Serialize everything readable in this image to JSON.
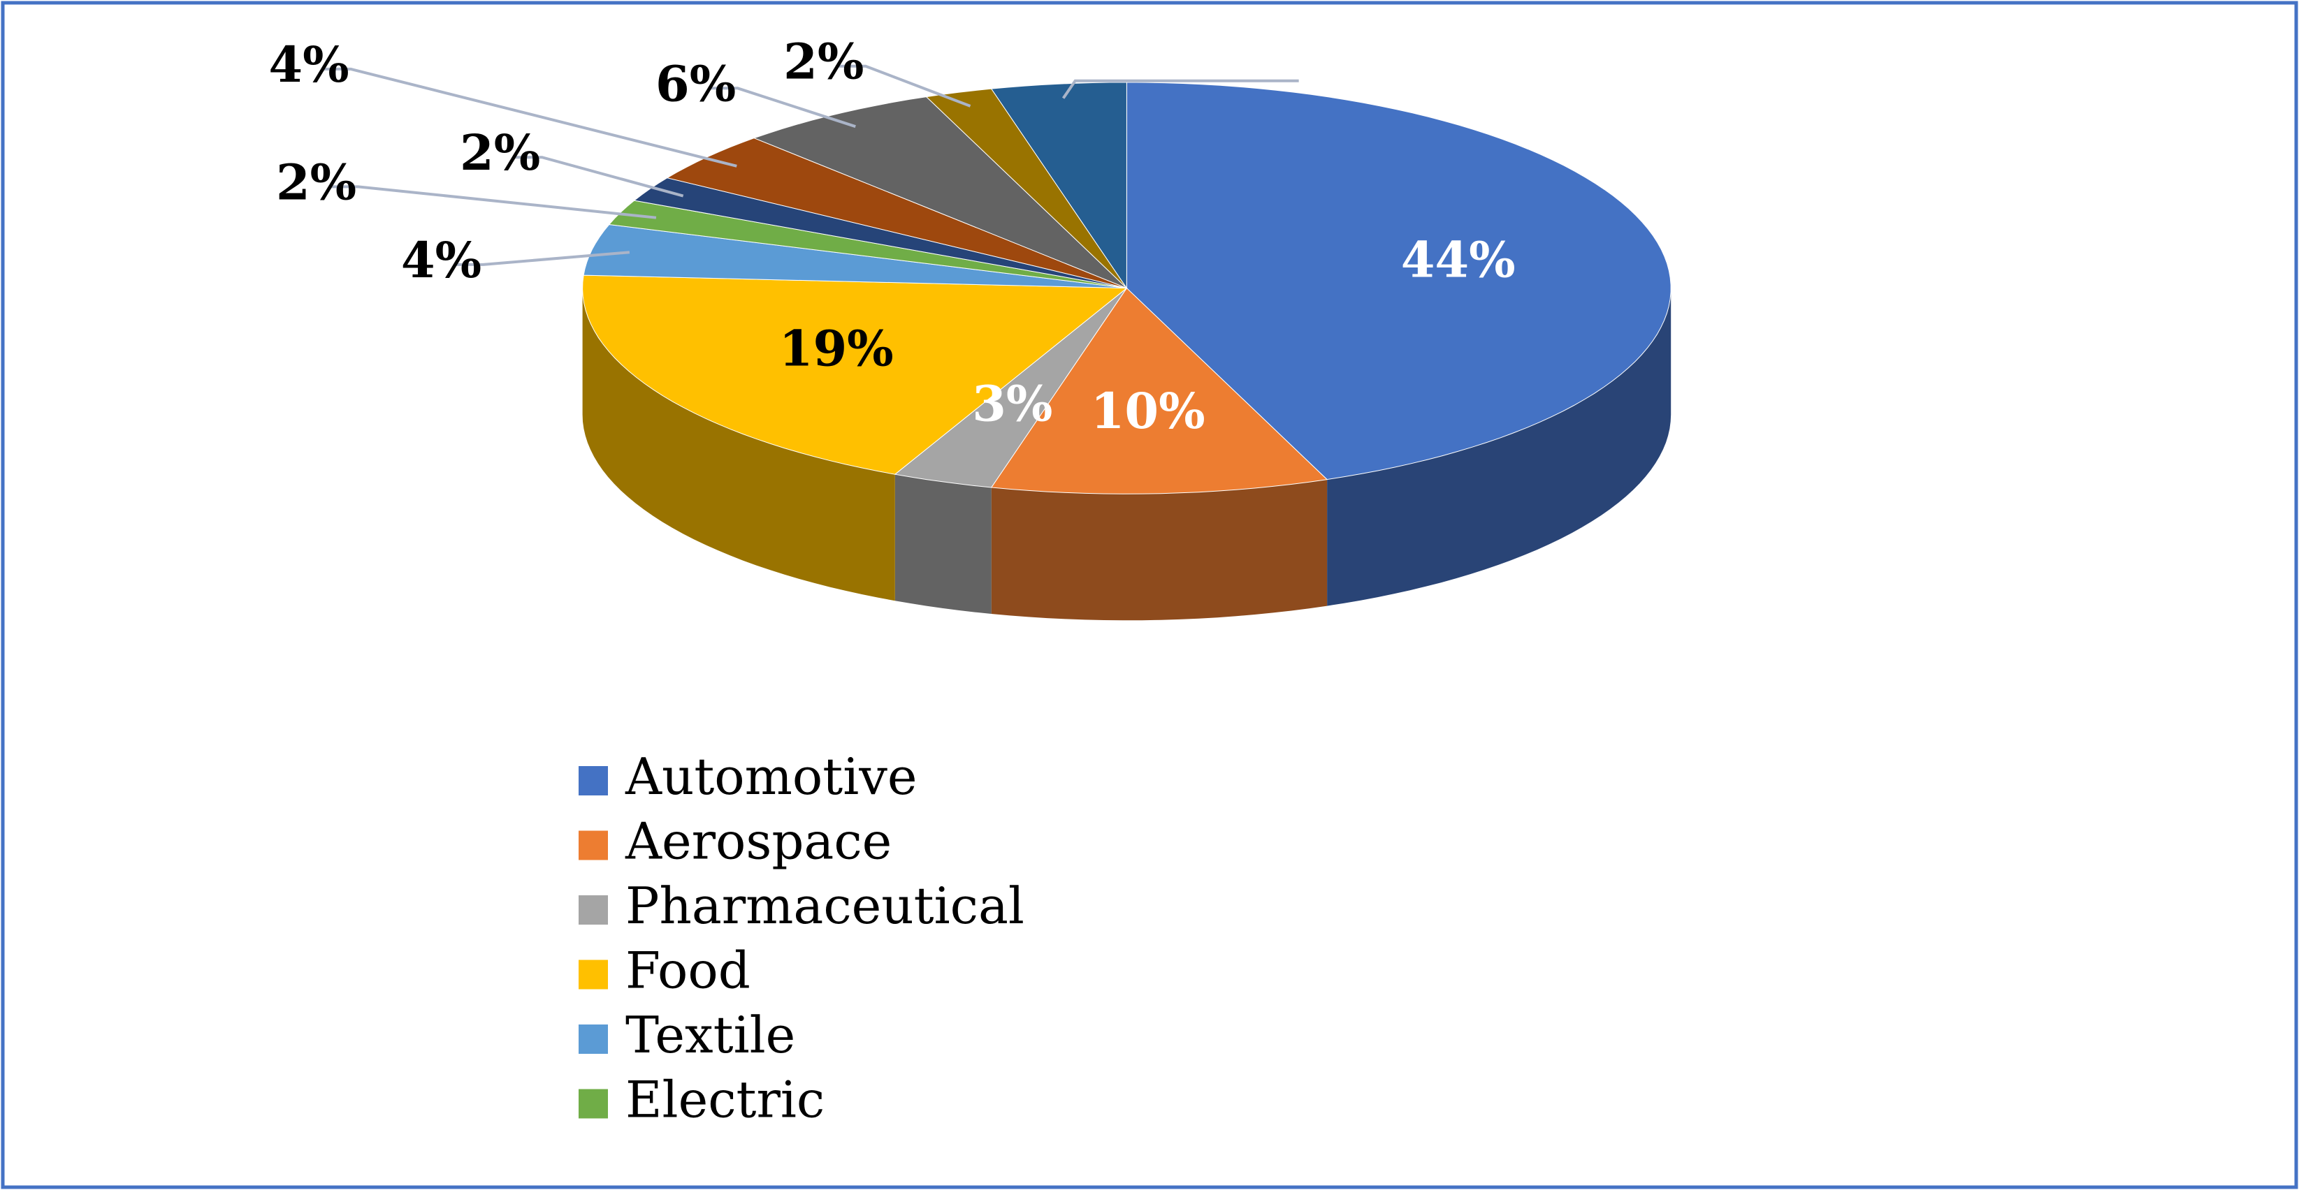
{
  "chart_data": {
    "type": "pie3d",
    "categories": [
      "Automotive",
      "Aerospace",
      "Pharmaceutical",
      "Food",
      "Textile",
      "Electric",
      null,
      null,
      null,
      null,
      null
    ],
    "values": [
      44,
      10,
      3,
      19,
      4,
      2,
      2,
      4,
      6,
      2,
      4
    ],
    "value_labels": [
      "44%",
      "10%",
      "3%",
      "19%",
      "4%",
      "2%",
      "2%",
      "4%",
      "6%",
      "2%",
      null
    ],
    "colors": [
      "#4472c4",
      "#ed7d31",
      "#a5a5a5",
      "#ffc000",
      "#5b9bd5",
      "#70ad47",
      "#264478",
      "#9e480e",
      "#636363",
      "#997300",
      "#255e91"
    ],
    "legend": "bottom"
  }
}
